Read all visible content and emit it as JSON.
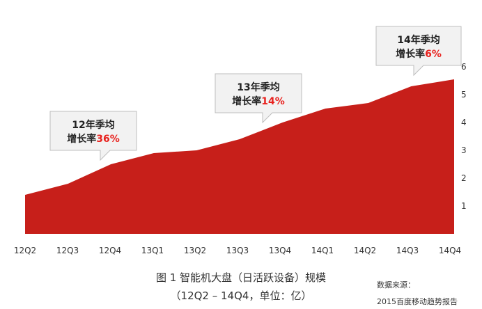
{
  "chart_data": {
    "type": "area",
    "categories": [
      "12Q2",
      "12Q3",
      "12Q4",
      "13Q1",
      "13Q2",
      "13Q3",
      "13Q4",
      "14Q1",
      "14Q2",
      "14Q3",
      "14Q4"
    ],
    "series": [
      {
        "values": [
          1.4,
          1.8,
          2.5,
          2.9,
          3.0,
          3.4,
          4.0,
          4.5,
          4.7,
          5.3,
          5.55
        ]
      }
    ],
    "ylim": [
      0,
      6
    ],
    "yticks": [
      "1",
      "2",
      "3",
      "4",
      "5",
      "6"
    ],
    "grid": false,
    "colors": {
      "area": "#c71f1a",
      "accent": "#e8211d",
      "callout_fill": "#f2f2f2",
      "callout_stroke": "#bdbdbd"
    },
    "annotations": [
      {
        "line1": "12年季均",
        "line2_prefix": "增长率",
        "line2_value": "36%",
        "anchor_category": "12Q4"
      },
      {
        "line1": "13年季均",
        "line2_prefix": "增长率",
        "line2_value": "14%",
        "anchor_category": "13Q3"
      },
      {
        "line1": "14年季均",
        "line2_prefix": "增长率",
        "line2_value": "6%",
        "anchor_category": "14Q3"
      }
    ]
  },
  "caption": {
    "line1": "图 1 智能机大盘（日活跃设备）规模",
    "line2": "（12Q2 – 14Q4，单位：亿）"
  },
  "source": {
    "label": "数据来源：",
    "text": "2015百度移动趋势报告"
  }
}
